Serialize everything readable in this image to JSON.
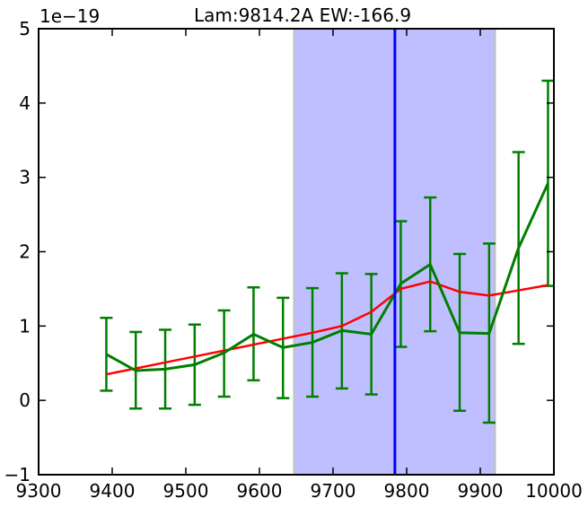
{
  "chart_data": {
    "type": "line",
    "title": "Lam:9814.2A EW:-166.9",
    "y_offset_text": "1e−19",
    "xlim": [
      9300,
      10000
    ],
    "ylim": [
      -1,
      5
    ],
    "x_ticks": [
      9300,
      9400,
      9500,
      9600,
      9700,
      9800,
      9900,
      10000
    ],
    "y_ticks": [
      -1,
      0,
      1,
      2,
      3,
      4,
      5
    ],
    "x_tick_labels": [
      "9300",
      "9400",
      "9500",
      "9600",
      "9700",
      "9800",
      "9900",
      "10000"
    ],
    "y_tick_labels": [
      "−1",
      "0",
      "1",
      "2",
      "3",
      "4",
      "5"
    ],
    "grid": false,
    "shaded_region": {
      "x": [
        9647,
        9920
      ],
      "color": "#bfbfff",
      "edge_color": "#bfbfbf"
    },
    "vertical_line": {
      "x": 9784,
      "color": "#0000ff"
    },
    "series": [
      {
        "color": "#007f00",
        "x": [
          9392,
          9432,
          9472,
          9512,
          9552,
          9592,
          9632,
          9672,
          9712,
          9752,
          9792,
          9832,
          9872,
          9912,
          9952,
          9992
        ],
        "y": [
          0.62,
          0.4,
          0.42,
          0.48,
          0.64,
          0.89,
          0.71,
          0.78,
          0.94,
          0.89,
          1.57,
          1.83,
          0.91,
          0.9,
          2.05,
          2.92
        ],
        "yerr_low": [
          0.13,
          -0.11,
          -0.11,
          -0.06,
          0.05,
          0.27,
          0.03,
          0.05,
          0.16,
          0.08,
          0.72,
          0.93,
          -0.14,
          -0.3,
          0.76,
          1.54
        ],
        "yerr_high": [
          1.11,
          0.92,
          0.95,
          1.02,
          1.21,
          1.52,
          1.38,
          1.51,
          1.71,
          1.7,
          2.41,
          2.73,
          1.97,
          2.11,
          3.34,
          4.3
        ]
      },
      {
        "color": "#ff0000",
        "x": [
          9392,
          9432,
          9472,
          9512,
          9552,
          9592,
          9632,
          9672,
          9712,
          9752,
          9792,
          9832,
          9872,
          9912,
          9952,
          9992
        ],
        "y": [
          0.35,
          0.43,
          0.51,
          0.59,
          0.67,
          0.75,
          0.83,
          0.91,
          1.0,
          1.19,
          1.5,
          1.6,
          1.46,
          1.41,
          1.48,
          1.55
        ]
      }
    ]
  }
}
